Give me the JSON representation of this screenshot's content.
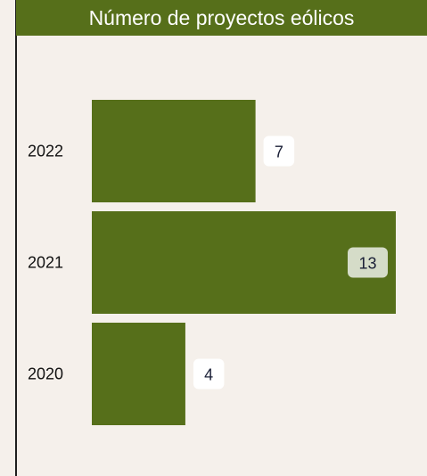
{
  "chart_data": {
    "type": "bar",
    "orientation": "horizontal",
    "title": "Número de proyectos eólicos",
    "categories": [
      "2022",
      "2021",
      "2020"
    ],
    "values": [
      7,
      13,
      4
    ],
    "xlim": [
      0,
      13
    ],
    "xlabel": "",
    "ylabel": "",
    "grid": false,
    "legend": "none",
    "highlighted_category": "2021",
    "colors": {
      "bar": "#566f1a",
      "title_background": "#566f1a",
      "title_text": "#ffffff",
      "background": "#f5f0eb",
      "label_box": "#ffffff",
      "label_box_highlight": "#d5dcc8",
      "label_text": "#1a1f36"
    }
  }
}
